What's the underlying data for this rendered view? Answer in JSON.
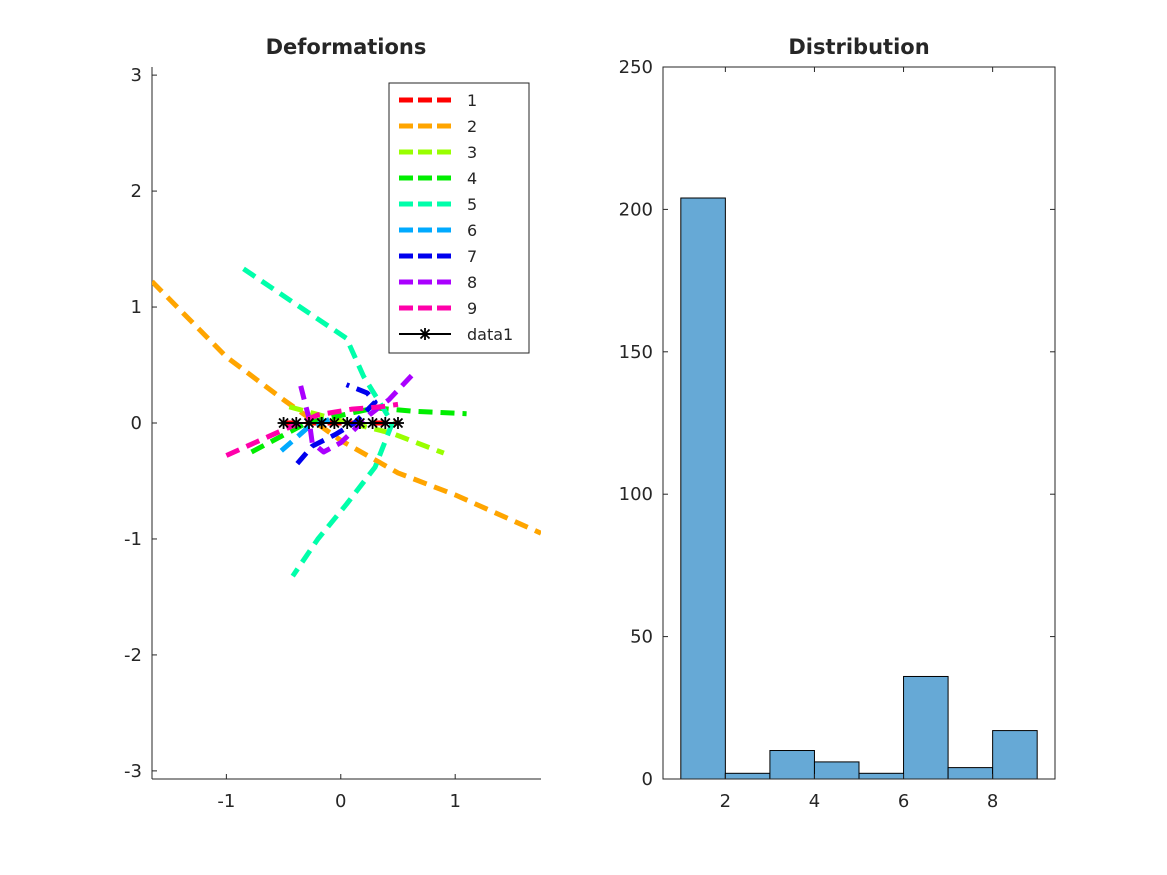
{
  "chart_data": [
    {
      "type": "line",
      "title": "Deformations",
      "xlabel": "",
      "ylabel": "",
      "xlim": [
        -1.65,
        1.75
      ],
      "ylim": [
        -3.07,
        3.07
      ],
      "xticks": [
        -1,
        0,
        1
      ],
      "xtick_labels": [
        "-1",
        "0",
        "1"
      ],
      "yticks": [
        -3,
        -2,
        -1,
        0,
        1,
        2,
        3
      ],
      "ytick_labels": [
        "-3",
        "-2",
        "-1",
        "0",
        "1",
        "2",
        "3"
      ],
      "grid": false,
      "legend_position": "top-right",
      "series": [
        {
          "name": "1",
          "color": "#ff0000",
          "style": "dashed",
          "points": [
            [
              -0.5,
              0.0
            ],
            [
              0.5,
              0.0
            ]
          ]
        },
        {
          "name": "2",
          "color": "#ffa500",
          "style": "dashed",
          "points": [
            [
              -1.65,
              1.22
            ],
            [
              -1.0,
              0.57
            ],
            [
              -0.5,
              0.2
            ],
            [
              0.0,
              -0.15
            ],
            [
              0.5,
              -0.43
            ],
            [
              1.0,
              -0.62
            ],
            [
              1.75,
              -0.95
            ]
          ]
        },
        {
          "name": "3",
          "color": "#99ff00",
          "style": "dashed",
          "points": [
            [
              -0.45,
              0.14
            ],
            [
              0.0,
              0.02
            ],
            [
              0.45,
              -0.09
            ],
            [
              0.9,
              -0.26
            ]
          ]
        },
        {
          "name": "4",
          "color": "#00ee00",
          "style": "dashed",
          "points": [
            [
              -0.78,
              -0.25
            ],
            [
              -0.3,
              0.0
            ],
            [
              0.3,
              0.13
            ],
            [
              0.65,
              0.1
            ],
            [
              1.1,
              0.08
            ]
          ]
        },
        {
          "name": "5",
          "color": "#00ffaa",
          "style": "dashed",
          "points": [
            [
              -0.85,
              1.33
            ],
            [
              -0.4,
              1.03
            ],
            [
              0.05,
              0.73
            ],
            [
              0.2,
              0.4
            ],
            [
              0.45,
              0.0
            ],
            [
              0.3,
              -0.38
            ],
            [
              0.05,
              -0.7
            ],
            [
              -0.2,
              -1.0
            ],
            [
              -0.42,
              -1.32
            ]
          ]
        },
        {
          "name": "6",
          "color": "#00aaff",
          "style": "dashed",
          "points": [
            [
              -0.52,
              -0.24
            ],
            [
              -0.3,
              -0.05
            ],
            [
              -0.05,
              0.05
            ]
          ]
        },
        {
          "name": "7",
          "color": "#0000ee",
          "style": "dashed",
          "points": [
            [
              -0.38,
              -0.35
            ],
            [
              -0.25,
              -0.2
            ],
            [
              -0.05,
              -0.1
            ],
            [
              0.12,
              0.0
            ],
            [
              0.3,
              0.18
            ],
            [
              0.23,
              0.26
            ],
            [
              0.05,
              0.33
            ]
          ]
        },
        {
          "name": "8",
          "color": "#aa00ff",
          "style": "dashed",
          "points": [
            [
              -0.35,
              0.32
            ],
            [
              -0.28,
              0.05
            ],
            [
              -0.25,
              -0.17
            ],
            [
              -0.15,
              -0.25
            ],
            [
              0.0,
              -0.17
            ],
            [
              0.25,
              0.07
            ],
            [
              0.42,
              0.2
            ],
            [
              0.62,
              0.41
            ]
          ]
        },
        {
          "name": "9",
          "color": "#ff00aa",
          "style": "dashed",
          "points": [
            [
              -1.0,
              -0.28
            ],
            [
              -0.55,
              -0.08
            ],
            [
              -0.2,
              0.07
            ],
            [
              0.1,
              0.12
            ],
            [
              0.35,
              0.14
            ],
            [
              0.5,
              0.16
            ]
          ]
        },
        {
          "name": "data1",
          "color": "#000000",
          "style": "solid",
          "marker": "*",
          "points": [
            [
              -0.5,
              0.0
            ],
            [
              -0.389,
              0.0
            ],
            [
              -0.278,
              0.0
            ],
            [
              -0.167,
              0.0
            ],
            [
              -0.056,
              0.0
            ],
            [
              0.056,
              0.0
            ],
            [
              0.167,
              0.0
            ],
            [
              0.278,
              0.0
            ],
            [
              0.389,
              0.0
            ],
            [
              0.5,
              0.0
            ]
          ]
        }
      ]
    },
    {
      "type": "bar",
      "title": "Distribution",
      "xlabel": "",
      "ylabel": "",
      "xlim": [
        0.6,
        9.4
      ],
      "ylim": [
        0,
        250
      ],
      "xticks": [
        2,
        4,
        6,
        8
      ],
      "xtick_labels": [
        "2",
        "4",
        "6",
        "8"
      ],
      "yticks": [
        0,
        50,
        100,
        150,
        200,
        250
      ],
      "ytick_labels": [
        "0",
        "50",
        "100",
        "150",
        "200",
        "250"
      ],
      "bar_color": "#66a9d6",
      "bin_edges": [
        1,
        2,
        3,
        4,
        5,
        6,
        7,
        8,
        9
      ],
      "values": [
        204,
        2,
        10,
        6,
        2,
        36,
        4,
        17
      ]
    }
  ]
}
